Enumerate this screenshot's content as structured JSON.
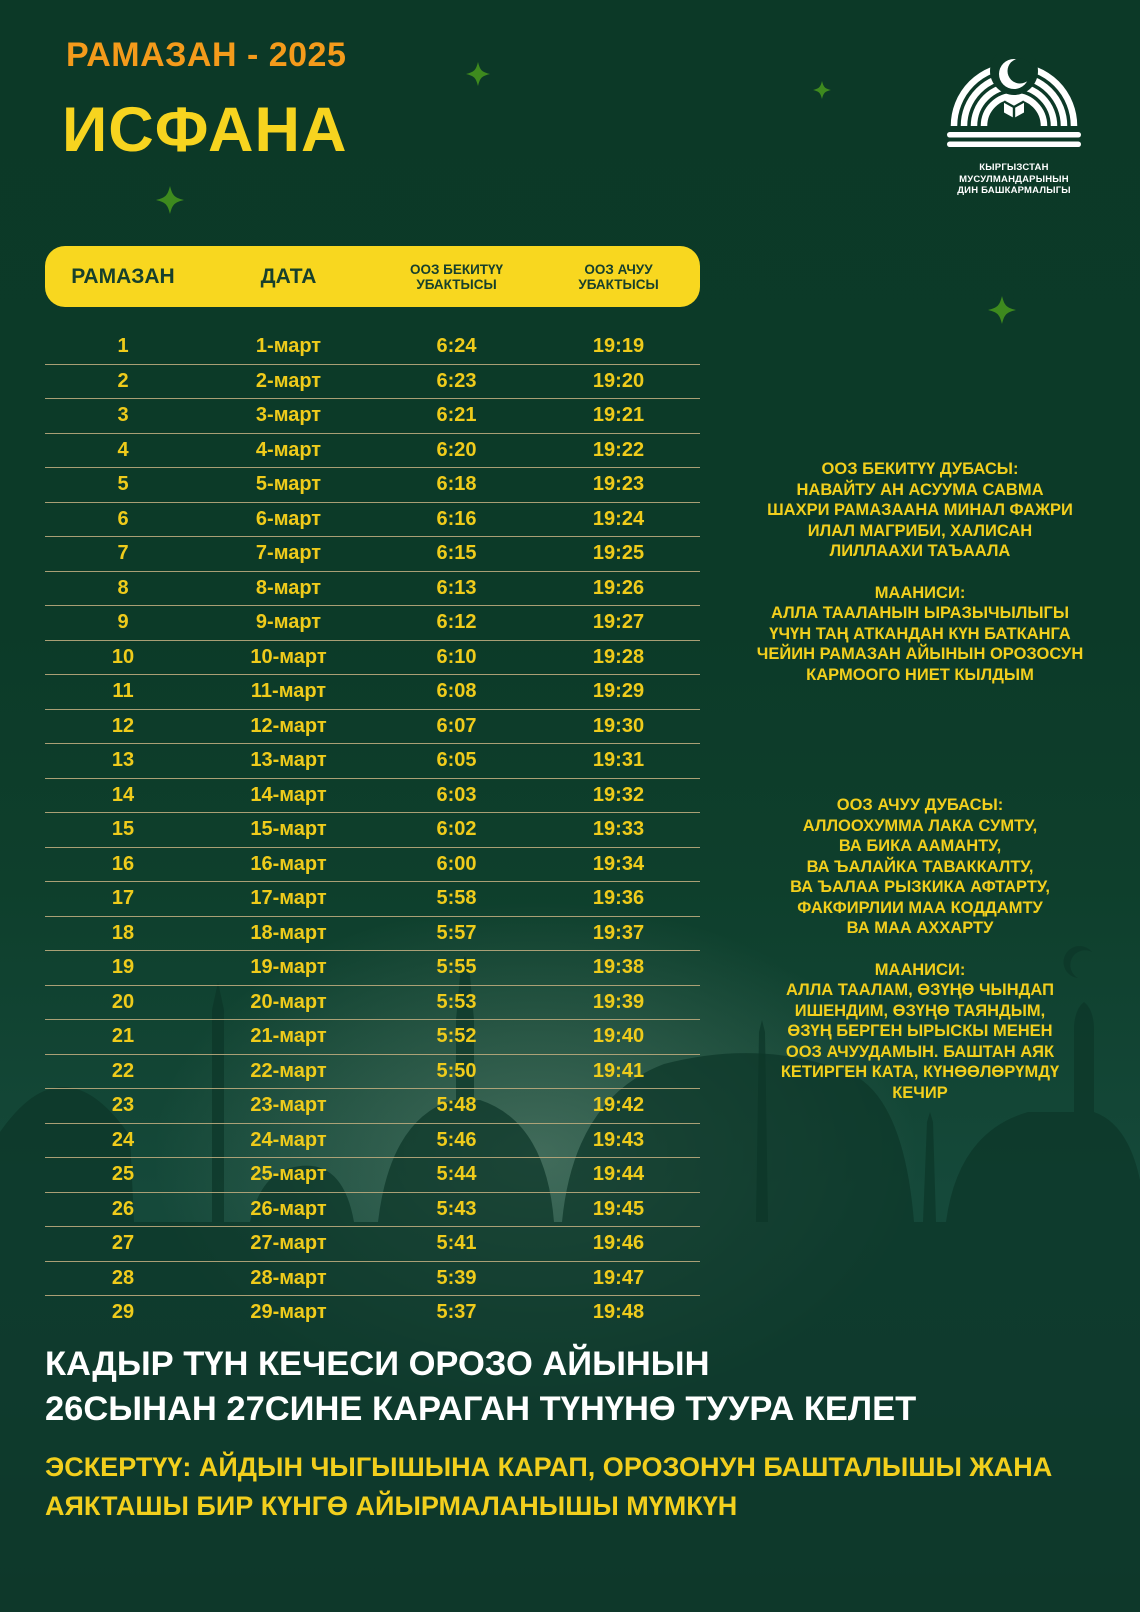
{
  "page": {
    "title_small": "РАМАЗАН - 2025",
    "title_city": "ИСФАНА"
  },
  "logo": {
    "icon": "mosque-crescent-logo",
    "caption_line1": "КЫРГЫЗСТАН МУСУЛМАНДАРЫНЫН",
    "caption_line2": "ДИН БАШКАРМАЛЫГЫ"
  },
  "table": {
    "headers": [
      "РАМАЗАН",
      "ДАТА",
      "ООЗ БЕКИТҮҮ УБАКТЫСЫ",
      "ООЗ АЧУУ УБАКТЫСЫ"
    ],
    "rows": [
      [
        "1",
        "1-март",
        "6:24",
        "19:19"
      ],
      [
        "2",
        "2-март",
        "6:23",
        "19:20"
      ],
      [
        "3",
        "3-март",
        "6:21",
        "19:21"
      ],
      [
        "4",
        "4-март",
        "6:20",
        "19:22"
      ],
      [
        "5",
        "5-март",
        "6:18",
        "19:23"
      ],
      [
        "6",
        "6-март",
        "6:16",
        "19:24"
      ],
      [
        "7",
        "7-март",
        "6:15",
        "19:25"
      ],
      [
        "8",
        "8-март",
        "6:13",
        "19:26"
      ],
      [
        "9",
        "9-март",
        "6:12",
        "19:27"
      ],
      [
        "10",
        "10-март",
        "6:10",
        "19:28"
      ],
      [
        "11",
        "11-март",
        "6:08",
        "19:29"
      ],
      [
        "12",
        "12-март",
        "6:07",
        "19:30"
      ],
      [
        "13",
        "13-март",
        "6:05",
        "19:31"
      ],
      [
        "14",
        "14-март",
        "6:03",
        "19:32"
      ],
      [
        "15",
        "15-март",
        "6:02",
        "19:33"
      ],
      [
        "16",
        "16-март",
        "6:00",
        "19:34"
      ],
      [
        "17",
        "17-март",
        "5:58",
        "19:36"
      ],
      [
        "18",
        "18-март",
        "5:57",
        "19:37"
      ],
      [
        "19",
        "19-март",
        "5:55",
        "19:38"
      ],
      [
        "20",
        "20-март",
        "5:53",
        "19:39"
      ],
      [
        "21",
        "21-март",
        "5:52",
        "19:40"
      ],
      [
        "22",
        "22-март",
        "5:50",
        "19:41"
      ],
      [
        "23",
        "23-март",
        "5:48",
        "19:42"
      ],
      [
        "24",
        "24-март",
        "5:46",
        "19:43"
      ],
      [
        "25",
        "25-март",
        "5:44",
        "19:44"
      ],
      [
        "26",
        "26-март",
        "5:43",
        "19:45"
      ],
      [
        "27",
        "27-март",
        "5:41",
        "19:46"
      ],
      [
        "28",
        "28-март",
        "5:39",
        "19:47"
      ],
      [
        "29",
        "29-март",
        "5:37",
        "19:48"
      ]
    ]
  },
  "duas": [
    {
      "title": "ООЗ БЕКИТҮҮ ДУБАСЫ:",
      "lines": [
        "НАВАЙТУ АН АСУУМА САВМА",
        "ШАХРИ РАМАЗААНА МИНАЛ ФАЖРИ",
        "ИЛАЛ МАГРИБИ, ХАЛИСАН",
        "ЛИЛЛААХИ ТАЪААЛА"
      ],
      "meaning_title": "МААНИСИ:",
      "meaning_lines": [
        "АЛЛА ТААЛАНЫН ЫРАЗЫЧЫЛЫГЫ",
        "ҮЧҮН ТАҢ АТКАНДАН КҮН БАТКАНГА",
        "ЧЕЙИН РАМАЗАН АЙЫНЫН ОРОЗОСУН",
        "КАРМООГО НИЕТ КЫЛДЫМ"
      ]
    },
    {
      "title": "ООЗ АЧУУ ДУБАСЫ:",
      "lines": [
        "АЛЛООХУММА ЛАКА СУМТУ,",
        "ВА БИКА ААМАНТУ,",
        "ВА ЪАЛАЙКА ТАВАККАЛТУ,",
        "ВА ЪАЛАА РЫЗКИКА АФТАРТУ,",
        "ФАКФИРЛИИ МАА КОДДАМТУ",
        "ВА МАА АХХАРТУ"
      ],
      "meaning_title": "МААНИСИ:",
      "meaning_lines": [
        "АЛЛА ТААЛАМ, ӨЗҮҢӨ ЧЫНДАП",
        "ИШЕНДИМ, ӨЗҮҢӨ ТАЯНДЫМ,",
        "ӨЗҮҢ БЕРГЕН ЫРЫСКЫ МЕНЕН",
        "ООЗ АЧУУДАМЫН. БАШТАН АЯК",
        "КЕТИРГЕН КАТА, КҮНӨӨЛӨРҮМДҮ",
        "КЕЧИР"
      ]
    }
  ],
  "footer": {
    "heading_line1": "КАДЫР ТҮН КЕЧЕСИ ОРОЗО АЙЫНЫН",
    "heading_line2": "26СЫНАН 27СИНЕ КАРАГАН ТҮНҮНӨ ТУУРА КЕЛЕТ",
    "note_line1": "ЭСКЕРТҮҮ: АЙДЫН ЧЫГЫШЫНА КАРАП, ОРОЗОНУН БАШТАЛЫШЫ ЖАНА",
    "note_line2": "АЯКТАШЫ БИР КҮНГӨ АЙЫРМАЛАНЫШЫ МҮМКҮН"
  },
  "colors": {
    "background_dark_green": "#0C3927",
    "accent_orange": "#F49B1B",
    "accent_yellow": "#F7D41F",
    "table_header_bg": "#F8D71F",
    "table_header_text": "#17402C",
    "table_row_text": "#EFCB1B",
    "row_separator": "#B7A87C",
    "sparkle_green": "#3E8A1E",
    "white": "#FFFFFF"
  }
}
